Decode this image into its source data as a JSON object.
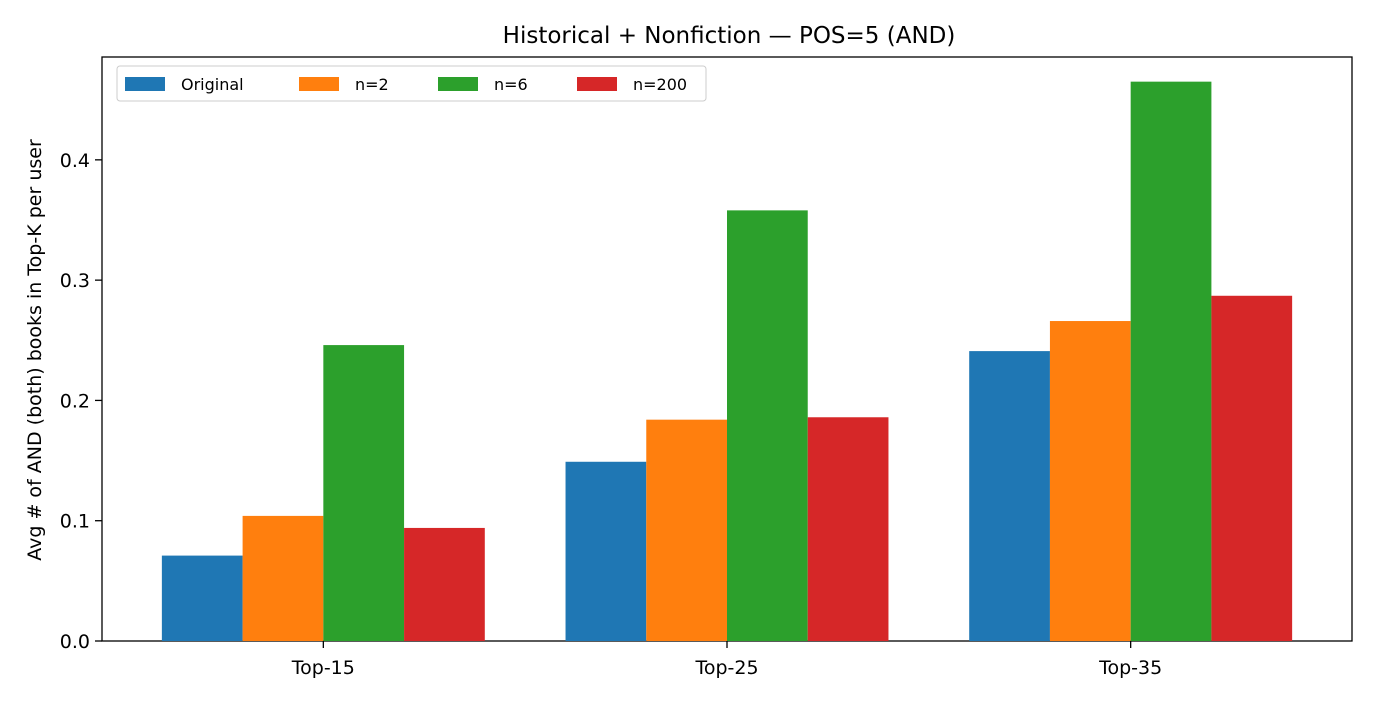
{
  "chart_data": {
    "type": "bar",
    "title": "Historical + Nonfiction — POS=5 (AND)",
    "xlabel": "",
    "ylabel": "Avg # of AND (both) books in Top-K per user",
    "categories": [
      "Top-15",
      "Top-25",
      "Top-35"
    ],
    "series": [
      {
        "name": "Original",
        "color": "#1f77b4",
        "values": [
          0.071,
          0.149,
          0.241
        ]
      },
      {
        "name": "n=2",
        "color": "#ff7f0e",
        "values": [
          0.104,
          0.184,
          0.266
        ]
      },
      {
        "name": "n=6",
        "color": "#2ca02c",
        "values": [
          0.246,
          0.358,
          0.465
        ]
      },
      {
        "name": "n=200",
        "color": "#d62728",
        "values": [
          0.094,
          0.186,
          0.287
        ]
      }
    ],
    "ylim": [
      0,
      0.4855
    ],
    "yticks": [
      0.0,
      0.1,
      0.2,
      0.3,
      0.4
    ],
    "ytick_labels": [
      "0.0",
      "0.1",
      "0.2",
      "0.3",
      "0.4"
    ],
    "grid": false,
    "legend": {
      "placement": "top-left",
      "columns": 4
    }
  }
}
